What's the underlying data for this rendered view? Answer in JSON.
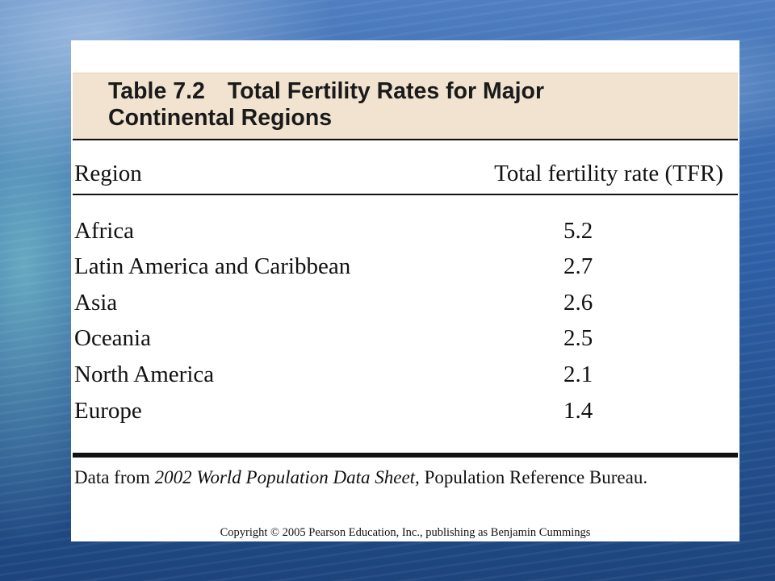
{
  "table": {
    "label": "Table 7.2",
    "title_line1": "Total Fertility Rates for Major",
    "title_line2": "Continental Regions",
    "columns": [
      "Region",
      "Total fertility rate (TFR)"
    ],
    "rows": [
      {
        "region": "Africa",
        "tfr": "5.2"
      },
      {
        "region": "Latin America and Caribbean",
        "tfr": "2.7"
      },
      {
        "region": "Asia",
        "tfr": "2.6"
      },
      {
        "region": "Oceania",
        "tfr": "2.5"
      },
      {
        "region": "North America",
        "tfr": "2.1"
      },
      {
        "region": "Europe",
        "tfr": "1.4"
      }
    ],
    "source": {
      "prefix": "Data from ",
      "publication": "2002 World Population Data Sheet,",
      "suffix": " Population Reference Bureau."
    },
    "copyright": "Copyright © 2005 Pearson Education, Inc., publishing as Benjamin Cummings"
  },
  "colors": {
    "caption_band": "#f1e3d0",
    "panel": "#ffffff",
    "rule": "#111111"
  }
}
